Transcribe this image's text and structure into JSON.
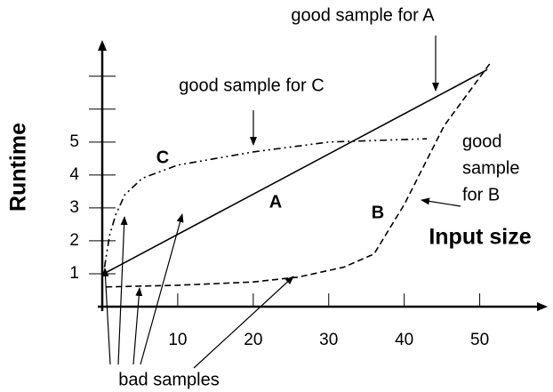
{
  "chart_data": {
    "type": "line",
    "xlabel": "Input size",
    "ylabel": "Runtime",
    "xlim": [
      0,
      59
    ],
    "ylim": [
      0,
      8.1
    ],
    "xticks": [
      10,
      20,
      30,
      40,
      50
    ],
    "yticks": [
      1,
      2,
      3,
      4,
      5
    ],
    "yminor": [
      6,
      7
    ],
    "series": [
      {
        "name": "A",
        "color": "#000000",
        "style": "solid",
        "x": [
          0.2,
          51
        ],
        "values": [
          1.0,
          7.2
        ]
      },
      {
        "name": "B",
        "color": "#000000",
        "style": "dashed",
        "x": [
          0.5,
          10,
          20,
          26,
          32,
          36,
          40,
          45.3,
          51.4
        ],
        "values": [
          0.6,
          0.65,
          0.75,
          0.9,
          1.2,
          1.6,
          3.1,
          5.5,
          7.4
        ]
      },
      {
        "name": "C",
        "color": "#000000",
        "style": "dashdot",
        "x": [
          0.3,
          1,
          1.8,
          3,
          5.3,
          10,
          20,
          30,
          43
        ],
        "values": [
          1.2,
          2.2,
          2.8,
          3.4,
          3.9,
          4.3,
          4.7,
          5.0,
          5.1
        ]
      }
    ],
    "annotations": [
      {
        "lines": [
          "good sample for A"
        ]
      },
      {
        "lines": [
          "good sample for C"
        ]
      },
      {
        "lines": [
          "good",
          "sample",
          "for B"
        ]
      },
      {
        "lines": [
          "bad samples"
        ]
      }
    ]
  }
}
